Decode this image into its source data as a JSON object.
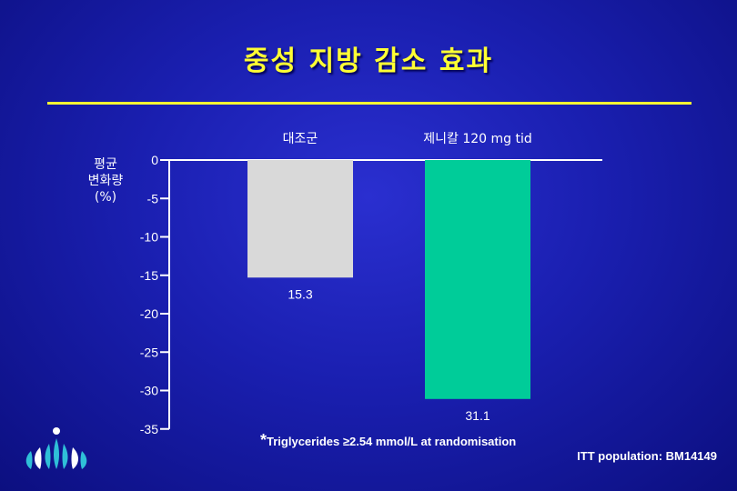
{
  "title": "중성 지방 감소 효과",
  "y_axis_label": [
    "평균",
    "변화량",
    "(%)"
  ],
  "footnote": {
    "star": "*",
    "text": "Triglycerides ≥2.54 mmol/L at randomisation"
  },
  "source_note": "ITT population: BM14149",
  "colors": {
    "background": "#1a1fb0",
    "title": "#ffff33",
    "placebo_bar": "#d9d9d9",
    "xenical_bar": "#00cc99"
  },
  "chart_data": {
    "type": "bar",
    "categories": [
      "대조군",
      "제니칼 120 mg tid"
    ],
    "values": [
      -15.3,
      -31.1
    ],
    "data_labels": [
      "15.3",
      "31.1"
    ],
    "yticks": [
      "0",
      "-5",
      "-10",
      "-15",
      "-20",
      "-25",
      "-30",
      "-35"
    ],
    "ylim": [
      -35,
      0
    ],
    "ylabel": "평균 변화량 (%)",
    "xlabel": "",
    "grid": false
  }
}
